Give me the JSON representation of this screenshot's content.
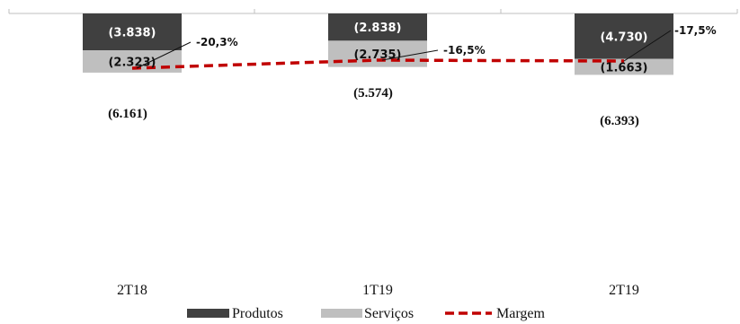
{
  "chart_data": {
    "type": "bar",
    "stacked": true,
    "direction": "negative",
    "categories": [
      "2T18",
      "1T19",
      "2T19"
    ],
    "series": [
      {
        "name": "Produtos",
        "values": [
          -3.838,
          -2.838,
          -4.73
        ],
        "labels": [
          "(3.838)",
          "(2.838)",
          "(4.730)"
        ],
        "color": "#404040"
      },
      {
        "name": "Serviços",
        "values": [
          -2.323,
          -2.735,
          -1.663
        ],
        "labels": [
          "(2.323)",
          "(2.735)",
          "(1.663)"
        ],
        "color": "#bfbfbf"
      }
    ],
    "totals": [
      "(6.161)",
      "(5.574)",
      "(6.393)"
    ],
    "margin": {
      "name": "Margem",
      "values": [
        -20.3,
        -16.5,
        -17.5
      ],
      "labels": [
        "-20,3%",
        "-16,5%",
        "-17,5%"
      ],
      "color": "#c00000",
      "style": "dashed"
    },
    "legend": {
      "position": "bottom",
      "items": [
        "Produtos",
        "Serviços",
        "Margem"
      ]
    },
    "grid": false
  }
}
